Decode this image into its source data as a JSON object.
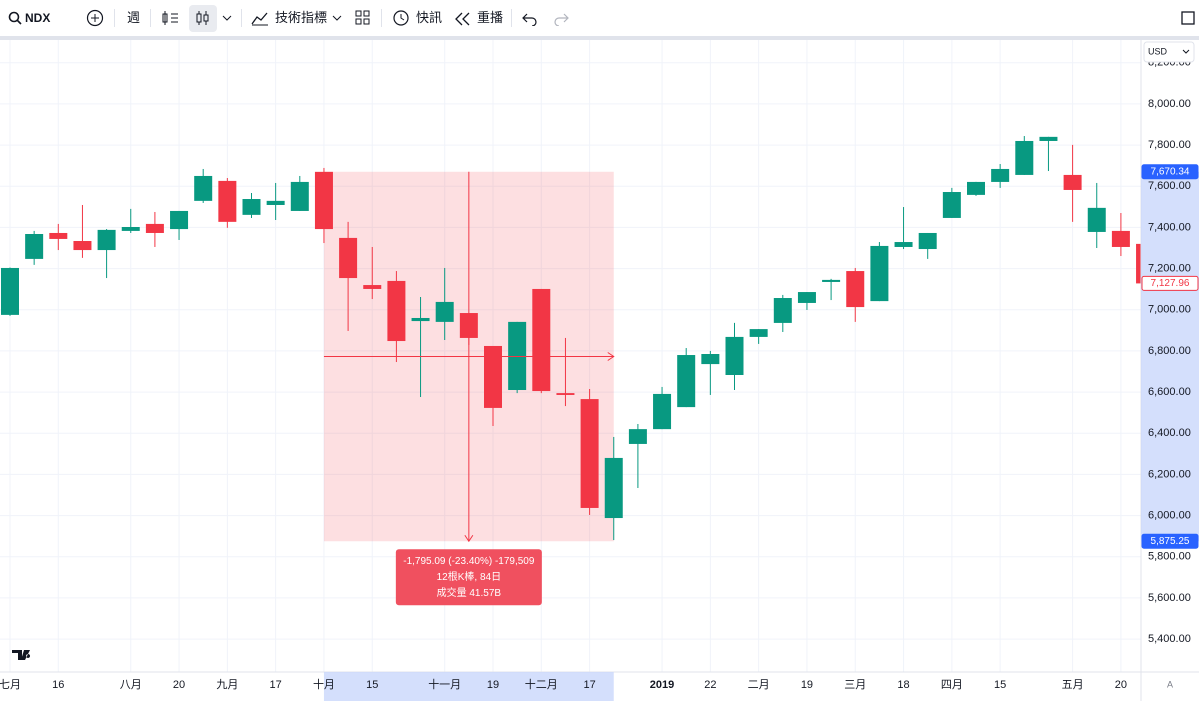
{
  "toolbar": {
    "symbol": "NDX",
    "interval": "週",
    "indicators": "技術指標",
    "alerts": "快訊",
    "replay": "重播"
  },
  "chart_data": {
    "type": "candlestick",
    "categories": [
      "七月",
      null,
      "16",
      null,
      null,
      "八月",
      null,
      "20",
      null,
      "九月",
      null,
      "17",
      null,
      "十月",
      null,
      "15",
      null,
      null,
      "十一月",
      null,
      "19",
      null,
      "十二月",
      null,
      "17",
      null,
      null,
      "2019",
      null,
      "22",
      null,
      "二月",
      null,
      "19",
      null,
      "三月",
      null,
      "18",
      null,
      "四月",
      null,
      "15",
      null,
      null,
      "五月",
      null,
      "20",
      null
    ],
    "open": [
      6975,
      7247,
      7373,
      7334,
      7290,
      7383,
      7417,
      7392,
      7529,
      7626,
      7461,
      7509,
      7480,
      7670,
      7349,
      7120,
      7140,
      6945,
      6941,
      6984,
      6824,
      6610,
      7101,
      6595,
      6566,
      5988,
      6348,
      6420,
      6527,
      6736,
      6683,
      6868,
      6936,
      7033,
      7135,
      7188,
      7042,
      7305,
      7295,
      7446,
      7558,
      7621,
      7655,
      7820,
      7655,
      7378,
      7383,
      7320
    ],
    "high": [
      7205,
      7383,
      7417,
      7509,
      7392,
      7490,
      7475,
      7480,
      7684,
      7640,
      7567,
      7616,
      7650,
      7689,
      7427,
      7305,
      7188,
      7062,
      7203,
      6984,
      6824,
      6941,
      7101,
      6863,
      6615,
      6382,
      6445,
      6625,
      6814,
      6800,
      6936,
      6906,
      7072,
      7086,
      7150,
      7203,
      7329,
      7499,
      7373,
      7592,
      7621,
      7708,
      7844,
      7840,
      7801,
      7616,
      7470,
      7330
    ],
    "low": [
      6970,
      7218,
      7290,
      7252,
      7154,
      7373,
      7305,
      7339,
      7519,
      7398,
      7446,
      7436,
      7480,
      7324,
      6897,
      7052,
      6746,
      6576,
      6853,
      6829,
      6435,
      6595,
      6595,
      6532,
      6003,
      5881,
      6134,
      6420,
      6527,
      6586,
      6610,
      6834,
      6892,
      6999,
      7047,
      6941,
      7042,
      7295,
      7247,
      7446,
      7553,
      7592,
      7655,
      7674,
      7427,
      7300,
      7261,
      7100
    ],
    "close": [
      7203,
      7368,
      7344,
      7290,
      7388,
      7402,
      7373,
      7480,
      7650,
      7427,
      7538,
      7529,
      7621,
      7392,
      7154,
      7101,
      6848,
      6960,
      7038,
      6863,
      6523,
      6941,
      6605,
      6586,
      6037,
      6280,
      6420,
      6591,
      6780,
      6785,
      6868,
      6906,
      7057,
      7086,
      7145,
      7013,
      7310,
      7329,
      7373,
      7572,
      7621,
      7684,
      7820,
      7840,
      7582,
      7495,
      7305,
      7127.96
    ],
    "up_color": "#089981",
    "down_color": "#f23645",
    "ylim": [
      5240,
      8330
    ],
    "yticks": [
      {
        "value": 5400,
        "label": "5,400.00"
      },
      {
        "value": 5600,
        "label": "5,600.00"
      },
      {
        "value": 5800,
        "label": "5,800.00"
      },
      {
        "value": 6000,
        "label": "6,000.00"
      },
      {
        "value": 6200,
        "label": "6,200.00"
      },
      {
        "value": 6400,
        "label": "6,400.00"
      },
      {
        "value": 6600,
        "label": "6,600.00"
      },
      {
        "value": 6800,
        "label": "6,800.00"
      },
      {
        "value": 7000,
        "label": "7,000.00"
      },
      {
        "value": 7200,
        "label": "7,200.00"
      },
      {
        "value": 7400,
        "label": "7,400.00"
      },
      {
        "value": 7600,
        "label": "7,600.00"
      },
      {
        "value": 7800,
        "label": "7,800.00"
      },
      {
        "value": 8000,
        "label": "8,000.00"
      },
      {
        "value": 8200,
        "label": "8,200.00"
      }
    ],
    "grid": true,
    "currency": "USD",
    "scale_mode": "A",
    "last_price": {
      "value": 7127.96,
      "label": "7,127.96"
    },
    "measure": {
      "start_category": 13,
      "end_category": 25,
      "high": {
        "value": 7670.34,
        "label": "7,670.34"
      },
      "low": {
        "value": 5875.25,
        "label": "5,875.25"
      },
      "lines": [
        "-1,795.09 (-23.40%) -179,509",
        "12根K棒, 84日",
        "成交量 41.57B"
      ]
    }
  }
}
